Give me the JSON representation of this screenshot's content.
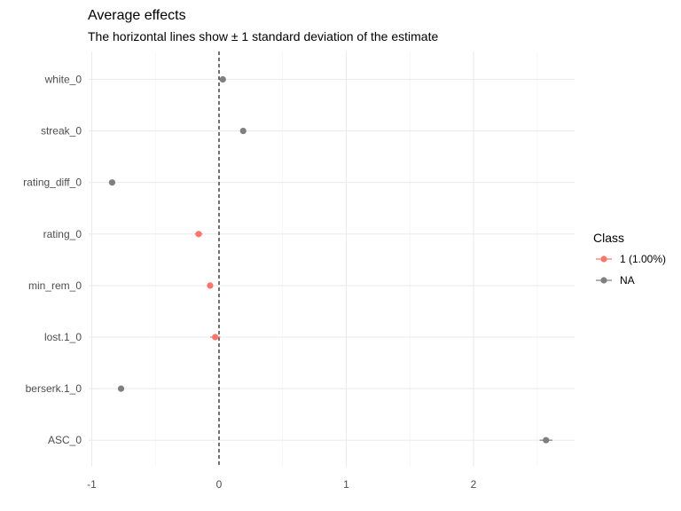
{
  "chart_data": {
    "type": "scatter",
    "title": "Average effects",
    "subtitle": "The horizontal lines show ± 1 standard deviation of the estimate",
    "xlabel": "",
    "ylabel": "",
    "xlim": [
      -1.0,
      2.8
    ],
    "x_ticks": [
      -1,
      0,
      1,
      2
    ],
    "x_tick_labels": [
      "-1",
      "0",
      "1",
      "2"
    ],
    "reference_line": {
      "x": 0,
      "style": "dashed"
    },
    "grid": true,
    "categories": [
      "white_0",
      "streak_0",
      "rating_diff_0",
      "rating_0",
      "min_rem_0",
      "lost.1_0",
      "berserk.1_0",
      "ASC_0"
    ],
    "points": [
      {
        "y": "white_0",
        "x": 0.03,
        "sd": 0.02,
        "class": "NA"
      },
      {
        "y": "streak_0",
        "x": 0.19,
        "sd": 0.02,
        "class": "NA"
      },
      {
        "y": "rating_diff_0",
        "x": -0.84,
        "sd": 0.02,
        "class": "NA"
      },
      {
        "y": "rating_0",
        "x": -0.16,
        "sd": 0.03,
        "class": "1 (1.00%)"
      },
      {
        "y": "min_rem_0",
        "x": -0.07,
        "sd": 0.02,
        "class": "1 (1.00%)"
      },
      {
        "y": "lost.1_0",
        "x": -0.03,
        "sd": 0.04,
        "class": "1 (1.00%)"
      },
      {
        "y": "berserk.1_0",
        "x": -0.77,
        "sd": 0.02,
        "class": "NA"
      },
      {
        "y": "ASC_0",
        "x": 2.57,
        "sd": 0.05,
        "class": "NA"
      }
    ],
    "legend": {
      "title": "Class",
      "placement": "right",
      "entries": [
        {
          "label": "1 (1.00%)",
          "color": "#f8766d"
        },
        {
          "label": "NA",
          "color": "#7f7f7f"
        }
      ]
    }
  }
}
